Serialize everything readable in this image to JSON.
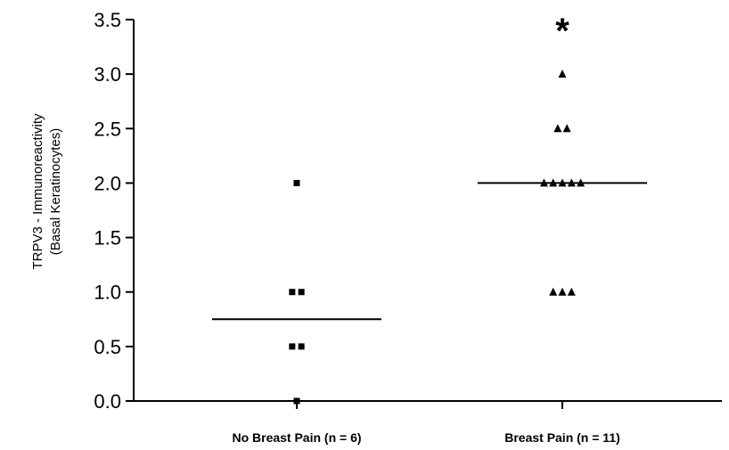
{
  "chart_data": {
    "type": "scatter",
    "title": "",
    "ylabel_lines": [
      "TRPV3 - Immunoreactivity",
      "(Basal Keratinocytes)"
    ],
    "xlabel": "",
    "ylim": [
      0,
      3.5
    ],
    "yticks": [
      "0.0",
      "0.5",
      "1.0",
      "1.5",
      "2.0",
      "2.5",
      "3.0",
      "3.5"
    ],
    "grid": false,
    "legend": "none",
    "categories": [
      "No Breast Pain (n = 6)",
      "Breast Pain (n = 11)"
    ],
    "series": [
      {
        "category": "No Breast Pain (n = 6)",
        "marker": "square",
        "values": [
          2.0,
          1.0,
          1.0,
          0.5,
          0.5,
          0.0
        ],
        "median": 0.75
      },
      {
        "category": "Breast Pain (n = 11)",
        "marker": "triangle",
        "values": [
          3.0,
          2.5,
          2.5,
          2.0,
          2.0,
          2.0,
          2.0,
          2.0,
          1.0,
          1.0,
          1.0
        ],
        "median": 2.0
      }
    ],
    "annotations": [
      {
        "text": "*",
        "category": "Breast Pain (n = 11)",
        "y": 3.5
      }
    ],
    "colors": {
      "marks": "#000000",
      "background": "#ffffff"
    }
  }
}
